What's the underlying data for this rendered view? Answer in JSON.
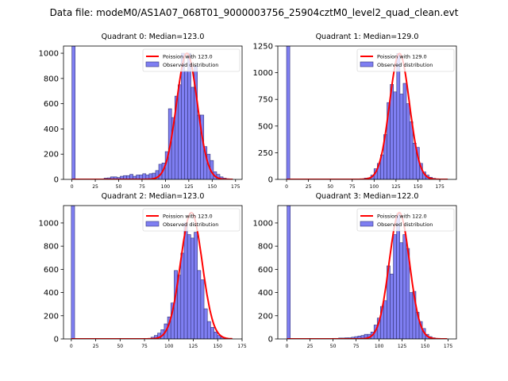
{
  "figure_title": "Data file: modeM0/AS1A07_068T01_9000003756_25904cztM0_level2_quad_clean.evt",
  "colors": {
    "bar_fill": "#7f7ff2",
    "bar_edge": "#33337a",
    "curve": "#ff0000"
  },
  "chart_data": [
    {
      "type": "bar",
      "title": "Quadrant 0: Median=123.0",
      "legend": [
        "Poission with 123.0",
        "Observed distribution"
      ],
      "legend_placement": "top-right",
      "poisson_mean": 123.0,
      "curve_peak": 1000,
      "bin_width": 3.44,
      "counts": [
        5000,
        0,
        0,
        0,
        0,
        0,
        0,
        0,
        0,
        0,
        10,
        12,
        20,
        20,
        15,
        25,
        30,
        30,
        40,
        25,
        35,
        35,
        45,
        35,
        45,
        50,
        70,
        120,
        130,
        220,
        560,
        490,
        660,
        750,
        1000,
        860,
        1000,
        730,
        900,
        510,
        510,
        260,
        200,
        150,
        60,
        40,
        20,
        10,
        5,
        2
      ],
      "xlim": [
        -9,
        182
      ],
      "ylim": [
        0,
        1057
      ],
      "xticks": [
        0,
        25,
        50,
        75,
        100,
        125,
        150,
        175
      ],
      "yticks": [
        0,
        200,
        400,
        600,
        800,
        1000
      ]
    },
    {
      "type": "bar",
      "title": "Quadrant 1: Median=129.0",
      "legend": [
        "Poission with 129.0",
        "Observed distribution"
      ],
      "legend_placement": "top-right",
      "poisson_mean": 129.0,
      "curve_peak": 1180,
      "bin_width": 3.7,
      "counts": [
        5000,
        0,
        0,
        0,
        0,
        0,
        0,
        0,
        0,
        0,
        0,
        0,
        0,
        0,
        0,
        0,
        0,
        0,
        0,
        0,
        0,
        0,
        3,
        5,
        12,
        15,
        40,
        100,
        150,
        230,
        420,
        720,
        890,
        820,
        1180,
        800,
        900,
        710,
        540,
        340,
        300,
        150,
        70,
        40,
        20,
        10,
        5,
        3,
        1,
        1
      ],
      "xlim": [
        -10,
        194
      ],
      "ylim": [
        0,
        1250
      ],
      "xticks": [
        0,
        25,
        50,
        75,
        100,
        125,
        150,
        175
      ],
      "yticks": [
        0,
        250,
        500,
        750,
        1000,
        1250
      ]
    },
    {
      "type": "bar",
      "title": "Quadrant 2: Median=123.0",
      "legend": [
        "Poission with 123.0",
        "Observed distribution"
      ],
      "legend_placement": "top-right",
      "poisson_mean": 123.0,
      "curve_peak": 1090,
      "bin_width": 3.4,
      "counts": [
        5000,
        0,
        0,
        0,
        0,
        0,
        0,
        0,
        0,
        0,
        0,
        0,
        0,
        0,
        0,
        0,
        0,
        0,
        0,
        0,
        0,
        0,
        0,
        5,
        15,
        30,
        50,
        80,
        130,
        190,
        310,
        590,
        550,
        740,
        1000,
        900,
        870,
        920,
        590,
        510,
        260,
        150,
        100,
        60,
        30,
        15,
        8,
        3,
        0,
        0
      ],
      "xlim": [
        -8,
        175
      ],
      "ylim": [
        0,
        1150
      ],
      "xticks": [
        0,
        25,
        50,
        75,
        100,
        125,
        150,
        175
      ],
      "yticks": [
        0,
        200,
        400,
        600,
        800,
        1000
      ]
    },
    {
      "type": "bar",
      "title": "Quadrant 3: Median=122.0",
      "legend": [
        "Poission with 122.0",
        "Observed distribution"
      ],
      "legend_placement": "top-right",
      "poisson_mean": 122.0,
      "curve_peak": 1090,
      "bin_width": 3.5,
      "counts": [
        5000,
        0,
        0,
        0,
        0,
        0,
        0,
        0,
        0,
        0,
        0,
        0,
        0,
        0,
        5,
        5,
        8,
        8,
        10,
        10,
        15,
        20,
        25,
        30,
        40,
        40,
        60,
        120,
        180,
        280,
        330,
        630,
        560,
        900,
        1080,
        830,
        900,
        780,
        400,
        410,
        230,
        150,
        90,
        40,
        20,
        10,
        5,
        2,
        0,
        0
      ],
      "xlim": [
        -10,
        184
      ],
      "ylim": [
        0,
        1150
      ],
      "xticks": [
        0,
        25,
        50,
        75,
        100,
        125,
        150,
        175
      ],
      "yticks": [
        0,
        200,
        400,
        600,
        800,
        1000
      ]
    }
  ]
}
